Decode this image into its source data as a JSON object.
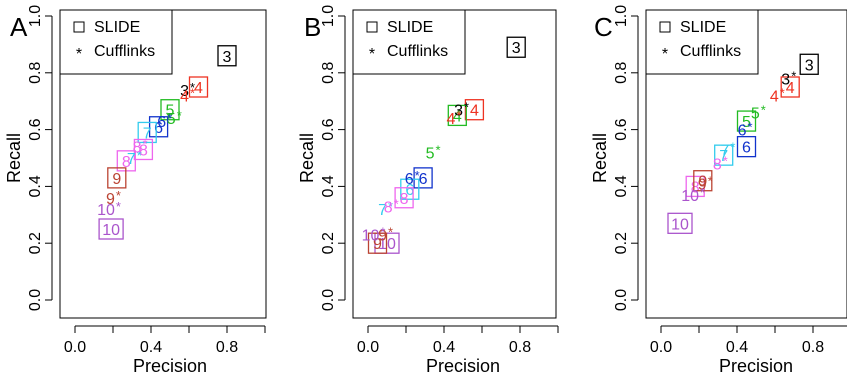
{
  "chart_data": [
    {
      "type": "scatter",
      "panel_label": "A",
      "xlabel": "Precision",
      "ylabel": "Recall",
      "xlim": [
        0,
        1
      ],
      "ylim": [
        0,
        1
      ],
      "x_ticks": [
        "0.0",
        "0.4",
        "0.8"
      ],
      "y_ticks": [
        "0.0",
        "0.2",
        "0.4",
        "0.6",
        "0.8",
        "1.0"
      ],
      "legend": [
        {
          "marker": "□",
          "label": "SLIDE"
        },
        {
          "marker": "*",
          "label": "Cufflinks"
        }
      ],
      "legend_position": "top-left",
      "series": [
        {
          "name": "SLIDE",
          "points": [
            {
              "label": "3",
              "x": 0.8,
              "y": 0.86,
              "color": "#000000"
            },
            {
              "label": "4",
              "x": 0.65,
              "y": 0.75,
              "color": "#ee3322"
            },
            {
              "label": "5",
              "x": 0.5,
              "y": 0.67,
              "color": "#22bb22"
            },
            {
              "label": "6",
              "x": 0.44,
              "y": 0.61,
              "color": "#1133cc"
            },
            {
              "label": "7",
              "x": 0.38,
              "y": 0.59,
              "color": "#33ccee"
            },
            {
              "label": "8",
              "x": 0.36,
              "y": 0.53,
              "color": "#ee66ee"
            },
            {
              "label": "8",
              "x": 0.27,
              "y": 0.49,
              "color": "#ee66ee"
            },
            {
              "label": "9",
              "x": 0.22,
              "y": 0.43,
              "color": "#bb4433"
            },
            {
              "label": "10",
              "x": 0.19,
              "y": 0.25,
              "color": "#aa55cc"
            }
          ]
        },
        {
          "name": "Cufflinks",
          "points": [
            {
              "label": "3",
              "x": 0.6,
              "y": 0.74,
              "color": "#000000"
            },
            {
              "label": "4",
              "x": 0.6,
              "y": 0.72,
              "color": "#ee3322"
            },
            {
              "label": "5",
              "x": 0.53,
              "y": 0.64,
              "color": "#22bb22"
            },
            {
              "label": "6",
              "x": 0.48,
              "y": 0.63,
              "color": "#1133cc"
            },
            {
              "label": "7",
              "x": 0.32,
              "y": 0.5,
              "color": "#33ccee"
            },
            {
              "label": "8",
              "x": 0.35,
              "y": 0.54,
              "color": "#ee66ee"
            },
            {
              "label": "9",
              "x": 0.21,
              "y": 0.36,
              "color": "#bb4433"
            },
            {
              "label": "10",
              "x": 0.21,
              "y": 0.32,
              "color": "#aa55cc"
            }
          ]
        }
      ]
    },
    {
      "type": "scatter",
      "panel_label": "B",
      "xlabel": "Precision",
      "ylabel": "Recall",
      "xlim": [
        0,
        1
      ],
      "ylim": [
        0,
        1
      ],
      "x_ticks": [
        "0.0",
        "0.4",
        "0.8"
      ],
      "y_ticks": [
        "0.0",
        "0.2",
        "0.4",
        "0.6",
        "0.8",
        "1.0"
      ],
      "legend": [
        {
          "marker": "□",
          "label": "SLIDE"
        },
        {
          "marker": "*",
          "label": "Cufflinks"
        }
      ],
      "legend_position": "top-left",
      "series": [
        {
          "name": "SLIDE",
          "points": [
            {
              "label": "3",
              "x": 0.78,
              "y": 0.89,
              "color": "#000000"
            },
            {
              "label": "4",
              "x": 0.56,
              "y": 0.67,
              "color": "#ee3322"
            },
            {
              "label": "4",
              "x": 0.47,
              "y": 0.65,
              "color": "#22bb22"
            },
            {
              "label": "6",
              "x": 0.29,
              "y": 0.43,
              "color": "#1133cc"
            },
            {
              "label": "6",
              "x": 0.22,
              "y": 0.39,
              "color": "#33ccee"
            },
            {
              "label": "8",
              "x": 0.19,
              "y": 0.36,
              "color": "#ee66ee"
            },
            {
              "label": "10",
              "x": 0.1,
              "y": 0.2,
              "color": "#aa55cc"
            },
            {
              "label": "9",
              "x": 0.05,
              "y": 0.2,
              "color": "#bb4433"
            }
          ]
        },
        {
          "name": "Cufflinks",
          "points": [
            {
              "label": "3",
              "x": 0.5,
              "y": 0.67,
              "color": "#000000"
            },
            {
              "label": "4",
              "x": 0.46,
              "y": 0.64,
              "color": "#ee3322"
            },
            {
              "label": "5",
              "x": 0.35,
              "y": 0.52,
              "color": "#22bb22"
            },
            {
              "label": "6",
              "x": 0.24,
              "y": 0.43,
              "color": "#1133cc"
            },
            {
              "label": "7",
              "x": 0.1,
              "y": 0.32,
              "color": "#33ccee"
            },
            {
              "label": "8",
              "x": 0.13,
              "y": 0.33,
              "color": "#ee66ee"
            },
            {
              "label": "9",
              "x": 0.1,
              "y": 0.23,
              "color": "#bb4433"
            },
            {
              "label": "10",
              "x": 0.06,
              "y": 0.23,
              "color": "#aa55cc"
            }
          ]
        }
      ]
    },
    {
      "type": "scatter",
      "panel_label": "C",
      "xlabel": "Precision",
      "ylabel": "Recall",
      "xlim": [
        0,
        1
      ],
      "ylim": [
        0,
        1
      ],
      "x_ticks": [
        "0.0",
        "0.4",
        "0.8"
      ],
      "y_ticks": [
        "0.0",
        "0.2",
        "0.4",
        "0.6",
        "0.8",
        "1.0"
      ],
      "legend": [
        {
          "marker": "□",
          "label": "SLIDE"
        },
        {
          "marker": "*",
          "label": "Cufflinks"
        }
      ],
      "legend_position": "top-left",
      "series": [
        {
          "name": "SLIDE",
          "points": [
            {
              "label": "3",
              "x": 0.78,
              "y": 0.83,
              "color": "#000000"
            },
            {
              "label": "4",
              "x": 0.68,
              "y": 0.75,
              "color": "#ee3322"
            },
            {
              "label": "5",
              "x": 0.45,
              "y": 0.63,
              "color": "#22bb22"
            },
            {
              "label": "6",
              "x": 0.45,
              "y": 0.54,
              "color": "#1133cc"
            },
            {
              "label": "7",
              "x": 0.33,
              "y": 0.51,
              "color": "#33ccee"
            },
            {
              "label": "8",
              "x": 0.18,
              "y": 0.4,
              "color": "#ee66ee"
            },
            {
              "label": "9",
              "x": 0.22,
              "y": 0.42,
              "color": "#bb4433"
            },
            {
              "label": "10",
              "x": 0.1,
              "y": 0.27,
              "color": "#aa55cc"
            }
          ]
        },
        {
          "name": "Cufflinks",
          "points": [
            {
              "label": "3",
              "x": 0.68,
              "y": 0.78,
              "color": "#000000"
            },
            {
              "label": "4",
              "x": 0.62,
              "y": 0.72,
              "color": "#ee3322"
            },
            {
              "label": "5",
              "x": 0.52,
              "y": 0.66,
              "color": "#22bb22"
            },
            {
              "label": "6",
              "x": 0.45,
              "y": 0.6,
              "color": "#1133cc"
            },
            {
              "label": "7",
              "x": 0.36,
              "y": 0.53,
              "color": "#33ccee"
            },
            {
              "label": "8",
              "x": 0.32,
              "y": 0.48,
              "color": "#ee66ee"
            },
            {
              "label": "9",
              "x": 0.24,
              "y": 0.41,
              "color": "#bb4433"
            },
            {
              "label": "10",
              "x": 0.2,
              "y": 0.37,
              "color": "#aa55cc"
            }
          ]
        }
      ]
    }
  ]
}
